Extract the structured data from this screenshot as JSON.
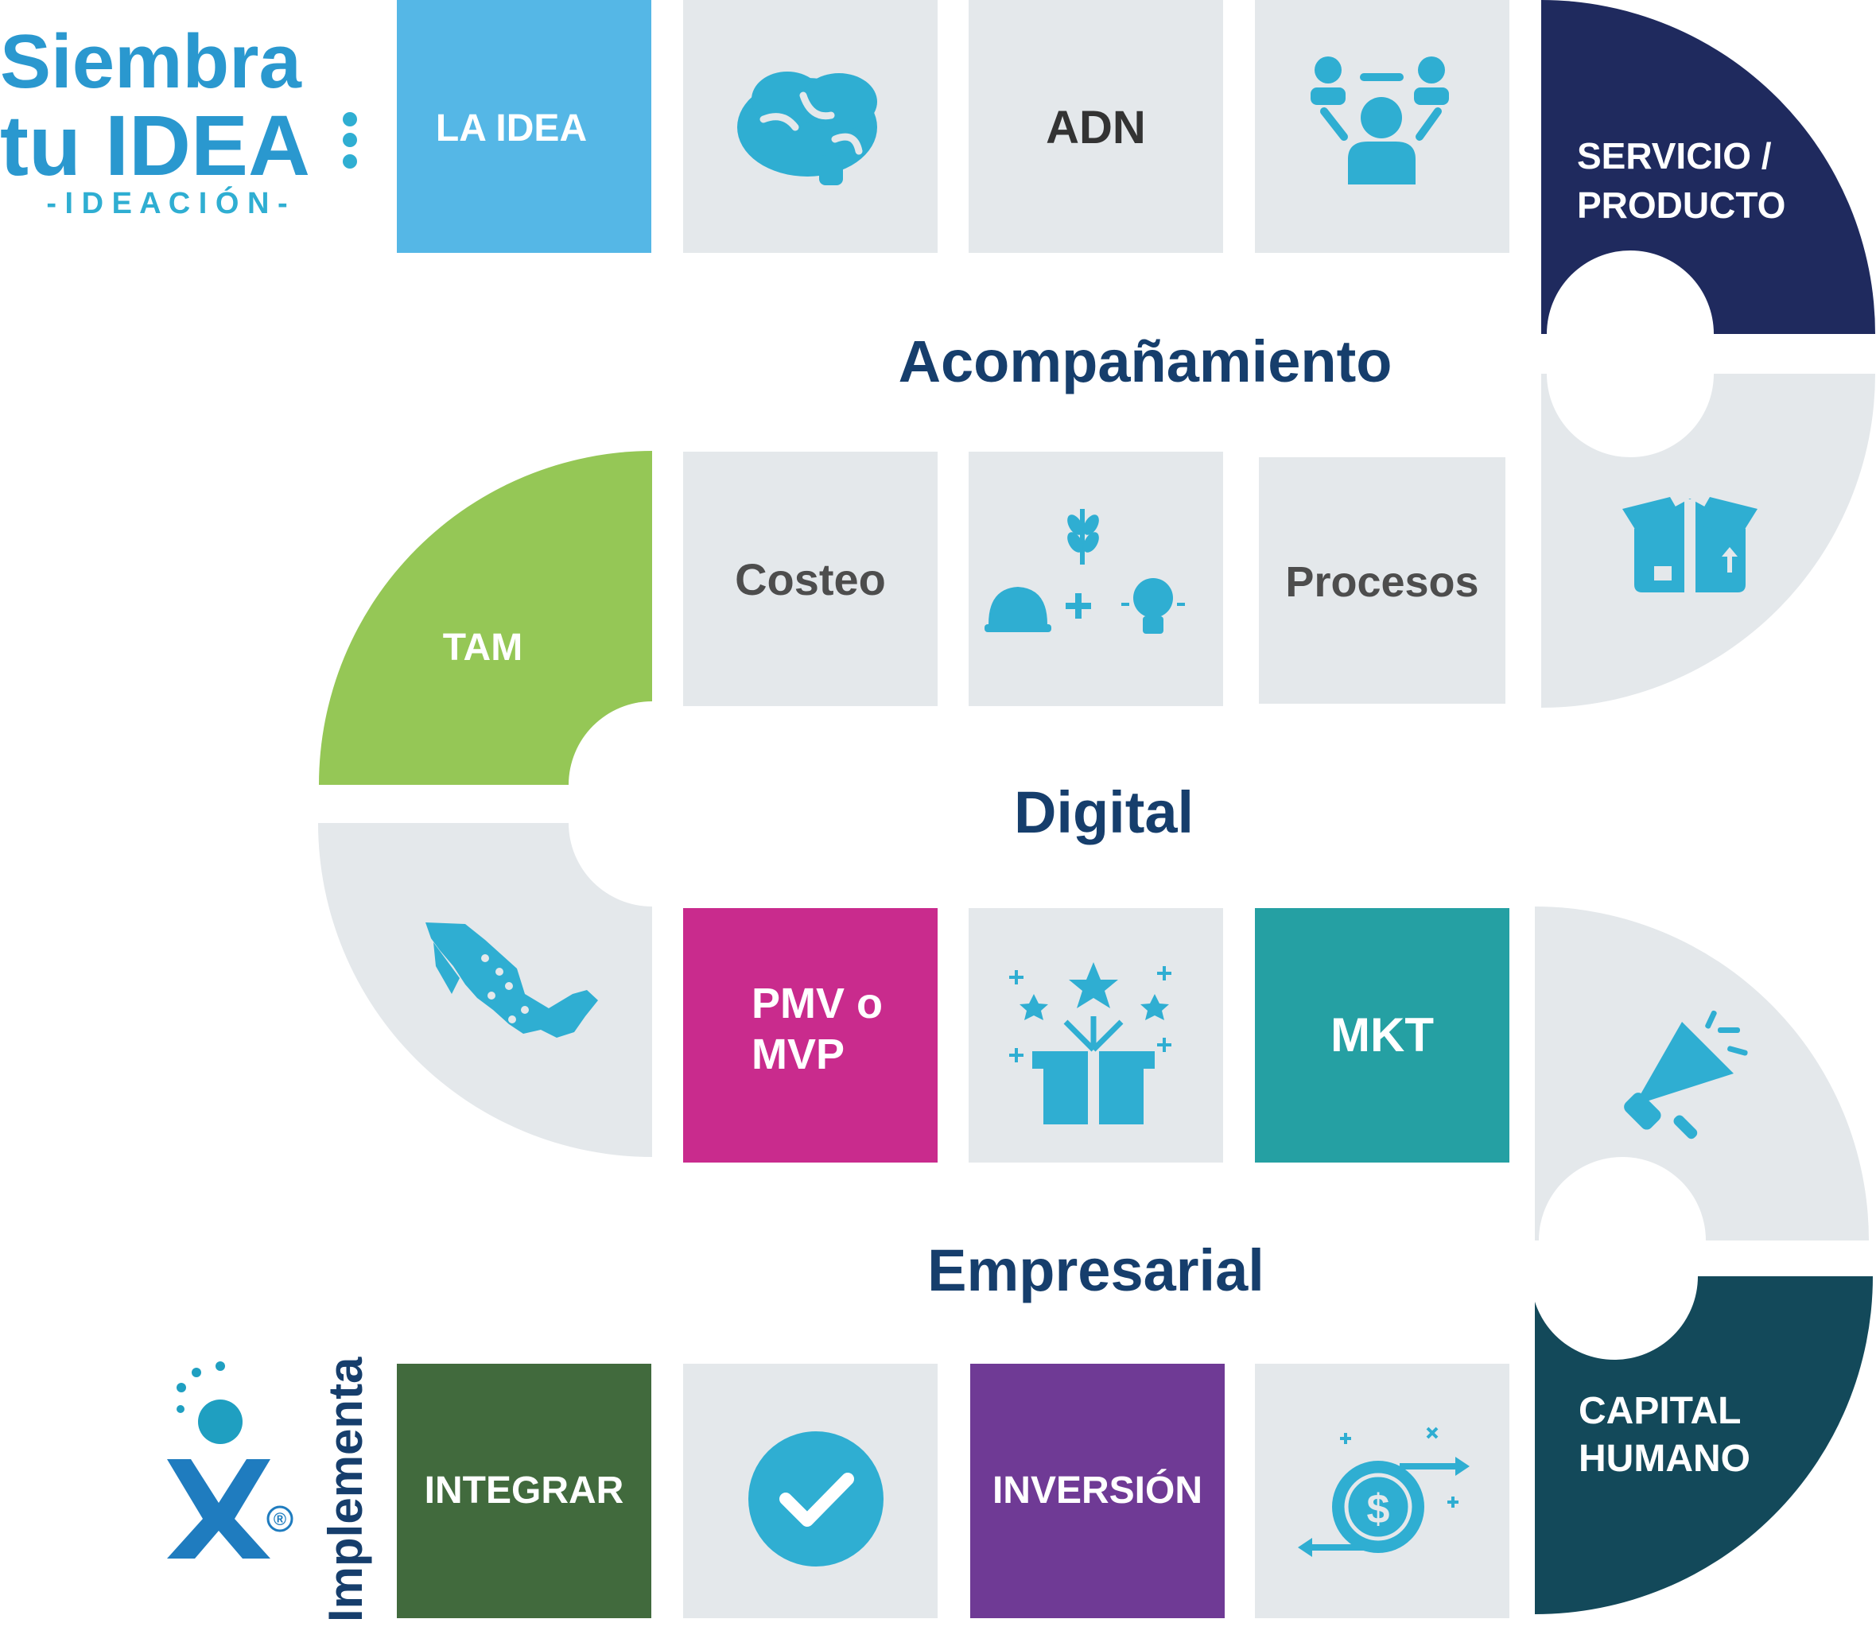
{
  "logo": {
    "line1": "Siembra",
    "line2": "tu IDEA",
    "subtitle": "- I D E A C I Ó N -"
  },
  "sections": {
    "acompanamiento": "Acompañamiento",
    "digital": "Digital",
    "empresarial": "Empresarial"
  },
  "tiles": {
    "la_idea": "LA IDEA",
    "adn": "ADN",
    "servicio_producto": [
      "SERVICIO /",
      "PRODUCTO"
    ],
    "tam": "TAM",
    "costeo": "Costeo",
    "procesos": "Procesos",
    "pmv": [
      "PMV o",
      "MVP"
    ],
    "mkt": "MKT",
    "capital_humano": [
      "CAPITAL",
      "HUMANO"
    ],
    "integrar": "INTEGRAR",
    "inversion": "INVERSIÓN"
  },
  "footer": {
    "brand": "Implementa",
    "registered_mark": "®"
  },
  "icons": [
    "brain-icon",
    "team-meeting-icon",
    "open-box-icon",
    "hardhat-plant-bulb-icon",
    "mexico-map-icon",
    "gift-box-stars-icon",
    "megaphone-icon",
    "checkmark-circle-icon",
    "money-exchange-icon",
    "implementa-logo-icon"
  ],
  "colors": {
    "tile_gray": "#e4e8eb",
    "icon_blue": "#2faed2",
    "la_idea": "#55b7e6",
    "servicio": "#1f2a5e",
    "tam": "#95c756",
    "pmv": "#c92b8d",
    "mkt": "#25a0a3",
    "capital": "#13495a",
    "integrar": "#416a3d",
    "inversion": "#6f3a95",
    "heading": "#163e6c",
    "gray_text": "#4d4d4d",
    "logo_blue": "#2a98cf"
  }
}
